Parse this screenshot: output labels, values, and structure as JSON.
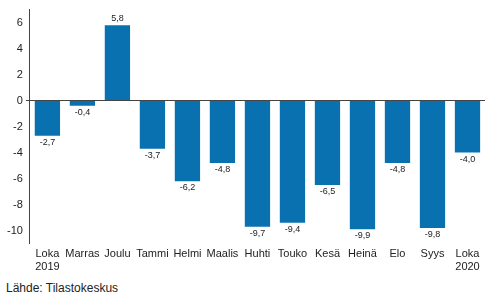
{
  "chart_data": {
    "type": "bar",
    "categories": [
      "Loka 2019",
      "Marras",
      "Joulu",
      "Tammi",
      "Helmi",
      "Maalis",
      "Huhti",
      "Touko",
      "Kesä",
      "Heinä",
      "Elo",
      "Syys",
      "Loka 2020"
    ],
    "values": [
      -2.7,
      -0.4,
      5.8,
      -3.7,
      -6.2,
      -4.8,
      -9.7,
      -9.4,
      -6.5,
      -9.9,
      -4.8,
      -9.8,
      -4.0
    ],
    "value_labels": [
      "-2,7",
      "-0,4",
      "5,8",
      "-3,7",
      "-6,2",
      "-4,8",
      "-9,7",
      "-9,4",
      "-6,5",
      "-9,9",
      "-4,8",
      "-9,8",
      "-4,0"
    ],
    "color": "#0a71b1",
    "ylim": [
      -11,
      7
    ],
    "yticks": [
      -10,
      -8,
      -6,
      -4,
      -2,
      0,
      2,
      4,
      6
    ],
    "grid": false,
    "data_labels": true,
    "source": "Lähde: Tilastokeskus"
  }
}
